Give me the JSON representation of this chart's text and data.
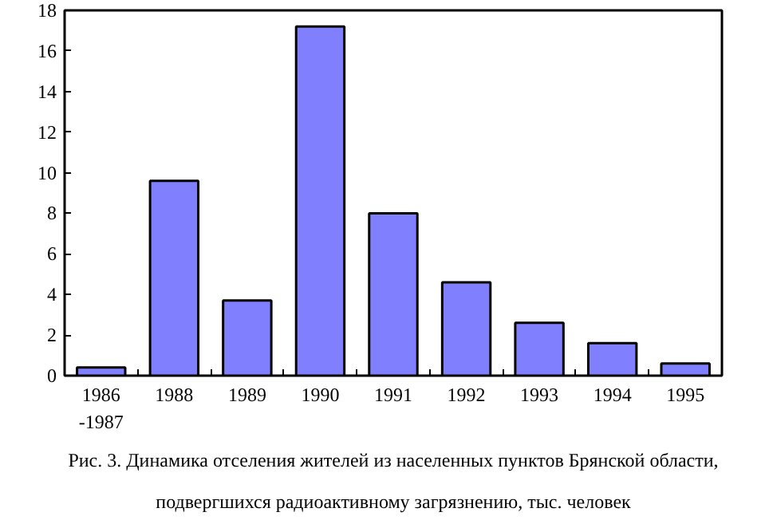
{
  "chart_data": {
    "type": "bar",
    "categories": [
      "1986\n-1987",
      "1988",
      "1989",
      "1990",
      "1991",
      "1992",
      "1993",
      "1994",
      "1995"
    ],
    "values": [
      0.4,
      9.6,
      3.7,
      17.2,
      8.0,
      4.6,
      2.6,
      1.6,
      0.6
    ],
    "color": "#8080ff",
    "ylim": [
      0,
      18
    ],
    "yticks": [
      0,
      2,
      4,
      6,
      8,
      10,
      12,
      14,
      16,
      18
    ],
    "grid": false,
    "annotations": [
      "Рис. 3. Динамика отселения жителей из населенных пунктов Брянской области,\nподвергшихся радиоактивному загрязнению, тыс. человек"
    ]
  }
}
